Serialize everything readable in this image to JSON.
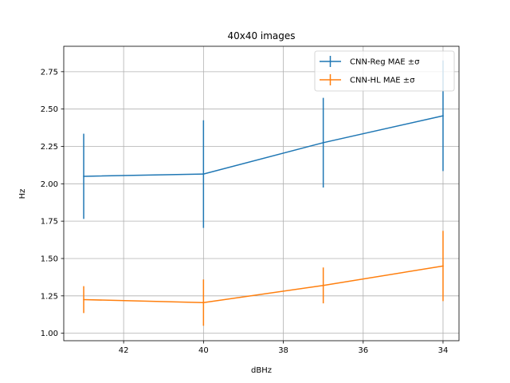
{
  "chart_data": {
    "type": "line",
    "title": "40x40 images",
    "xlabel": "dBHz",
    "ylabel": "Hz",
    "x": [
      43,
      40,
      37,
      34
    ],
    "xlim": [
      43.5,
      33.6
    ],
    "ylim": [
      0.95,
      2.92
    ],
    "x_inverted": true,
    "xticks": [
      42,
      40,
      38,
      36,
      34
    ],
    "yticks": [
      1.0,
      1.25,
      1.5,
      1.75,
      2.0,
      2.25,
      2.5,
      2.75
    ],
    "xtick_labels": [
      "42",
      "40",
      "38",
      "36",
      "34"
    ],
    "ytick_labels": [
      "1.00",
      "1.25",
      "1.50",
      "1.75",
      "2.00",
      "2.25",
      "2.50",
      "2.75"
    ],
    "grid": true,
    "legend_position": "top-right",
    "series": [
      {
        "name": "CNN-Reg MAE ±σ",
        "color": "#1f77b4",
        "values": [
          2.05,
          2.065,
          2.275,
          2.455
        ],
        "errors": [
          0.285,
          0.36,
          0.3,
          0.37
        ]
      },
      {
        "name": "CNN-HL MAE ±σ",
        "color": "#ff7f0e",
        "values": [
          1.225,
          1.205,
          1.32,
          1.45
        ],
        "errors": [
          0.09,
          0.155,
          0.12,
          0.235
        ]
      }
    ]
  }
}
